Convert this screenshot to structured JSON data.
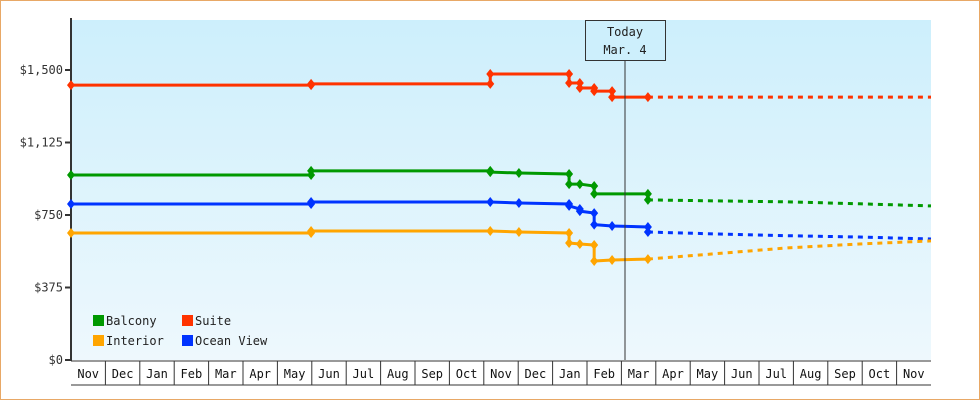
{
  "chart_data": {
    "type": "line",
    "title": "",
    "xlabel": "",
    "ylabel": "",
    "ylim": [
      0,
      1750
    ],
    "y_ticks": [
      {
        "label": "$1,500",
        "value": 1500
      },
      {
        "label": "$1,125",
        "value": 1125
      },
      {
        "label": "$750",
        "value": 750
      },
      {
        "label": "$375",
        "value": 375
      },
      {
        "label": "$0",
        "value": 0
      }
    ],
    "x_months": [
      "Nov",
      "Dec",
      "Jan",
      "Feb",
      "Mar",
      "Apr",
      "May",
      "Jun",
      "Jul",
      "Aug",
      "Sep",
      "Oct",
      "Nov",
      "Dec",
      "Jan",
      "Feb",
      "Mar",
      "Apr",
      "May",
      "Jun",
      "Jul",
      "Aug",
      "Sep",
      "Oct",
      "Nov"
    ],
    "today_marker": {
      "line1": "Today",
      "line2": "Mar. 4"
    },
    "legend": [
      {
        "name": "Balcony",
        "color": "#009900"
      },
      {
        "name": "Suite",
        "color": "#ff3300"
      },
      {
        "name": "Interior",
        "color": "#ffa500"
      },
      {
        "name": "Ocean View",
        "color": "#0033ff"
      }
    ],
    "series": [
      {
        "name": "Suite",
        "color": "#ff3300",
        "historical": [
          [
            0,
            1422
          ],
          [
            6.7,
            1422
          ],
          [
            6.7,
            1428
          ],
          [
            7.2,
            1428
          ],
          [
            11.7,
            1428
          ],
          [
            11.7,
            1479
          ],
          [
            13.9,
            1479
          ],
          [
            13.9,
            1433
          ],
          [
            14.2,
            1433
          ],
          [
            14.2,
            1407
          ],
          [
            14.6,
            1407
          ],
          [
            14.6,
            1391
          ],
          [
            15.1,
            1391
          ],
          [
            15.1,
            1360
          ],
          [
            16.1,
            1360
          ]
        ],
        "projected": [
          [
            16.1,
            1360
          ],
          [
            24,
            1360
          ]
        ]
      },
      {
        "name": "Balcony",
        "color": "#009900",
        "historical": [
          [
            0,
            957
          ],
          [
            6.7,
            957
          ],
          [
            6.7,
            978
          ],
          [
            7.2,
            978
          ],
          [
            11.7,
            978
          ],
          [
            11.7,
            972
          ],
          [
            12.5,
            967
          ],
          [
            13.9,
            962
          ],
          [
            13.9,
            910
          ],
          [
            14.2,
            910
          ],
          [
            14.6,
            900
          ],
          [
            14.6,
            859
          ],
          [
            16.1,
            859
          ],
          [
            16.1,
            828
          ]
        ],
        "projected": [
          [
            16.1,
            828
          ],
          [
            18,
            823
          ],
          [
            20,
            818
          ],
          [
            22,
            808
          ],
          [
            24,
            797
          ]
        ]
      },
      {
        "name": "Ocean View",
        "color": "#0033ff",
        "historical": [
          [
            0,
            807
          ],
          [
            6.7,
            807
          ],
          [
            6.7,
            817
          ],
          [
            7.2,
            817
          ],
          [
            11.7,
            817
          ],
          [
            12.5,
            812
          ],
          [
            13.9,
            807
          ],
          [
            13.9,
            797
          ],
          [
            14.2,
            781
          ],
          [
            14.2,
            770
          ],
          [
            14.6,
            760
          ],
          [
            14.6,
            700
          ],
          [
            15.1,
            693
          ],
          [
            16.1,
            688
          ],
          [
            16.1,
            662
          ]
        ],
        "projected": [
          [
            16.1,
            662
          ],
          [
            18,
            652
          ],
          [
            20,
            643
          ],
          [
            22,
            636
          ],
          [
            24,
            626
          ]
        ]
      },
      {
        "name": "Interior",
        "color": "#ffa500",
        "historical": [
          [
            0,
            657
          ],
          [
            6.7,
            657
          ],
          [
            6.7,
            667
          ],
          [
            7.2,
            667
          ],
          [
            11.7,
            667
          ],
          [
            12.5,
            662
          ],
          [
            13.9,
            657
          ],
          [
            13.9,
            605
          ],
          [
            14.2,
            600
          ],
          [
            14.6,
            595
          ],
          [
            14.6,
            512
          ],
          [
            15.1,
            517
          ],
          [
            16.1,
            522
          ]
        ],
        "projected": [
          [
            16.1,
            522
          ],
          [
            18,
            550
          ],
          [
            20,
            580
          ],
          [
            22,
            600
          ],
          [
            24,
            616
          ]
        ]
      }
    ]
  }
}
